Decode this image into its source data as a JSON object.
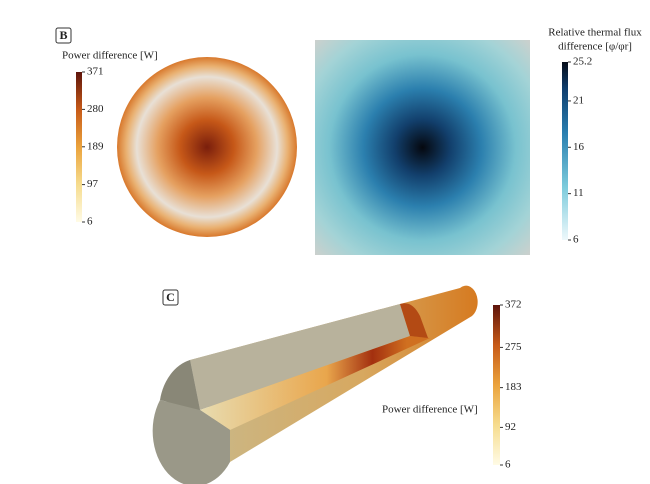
{
  "panel_b": {
    "label": "B",
    "power_colorbar": {
      "title": "Power difference [W]",
      "ticks": [
        371,
        280,
        189,
        97,
        6
      ]
    },
    "flux_colorbar": {
      "title_lines": [
        "Relative thermal flux",
        "difference [φ/φr]"
      ],
      "ticks": [
        25.2,
        21,
        16,
        11,
        6
      ]
    }
  },
  "panel_c": {
    "label": "C",
    "power_colorbar": {
      "title": "Power difference [W]",
      "ticks": [
        372,
        275,
        183,
        92,
        6
      ]
    }
  }
}
